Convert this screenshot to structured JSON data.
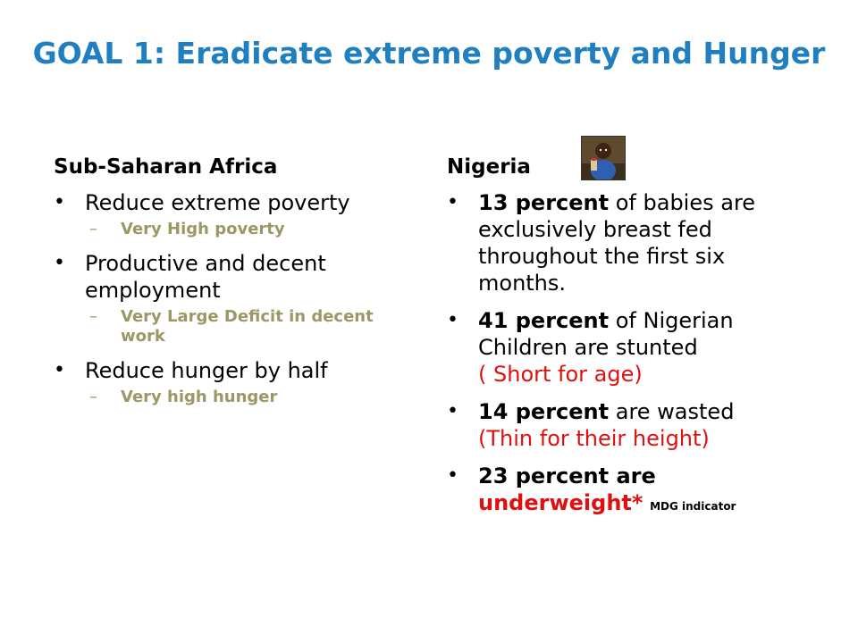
{
  "title": "GOAL 1: Eradicate extreme poverty and Hunger",
  "left": {
    "heading": "Sub-Saharan Africa",
    "items": [
      {
        "text": "Reduce extreme poverty",
        "sub": "Very High poverty"
      },
      {
        "text": "Productive and decent employment",
        "sub": "Very Large Deficit in decent work"
      },
      {
        "text": "Reduce hunger by half",
        "sub": "Very high hunger"
      }
    ]
  },
  "right": {
    "heading": "Nigeria",
    "items": [
      {
        "bold": "13 percent",
        "rest": " of babies are exclusively breast fed throughout the first six months."
      },
      {
        "bold": "41 percent",
        "rest": " of Nigerian Children are stunted",
        "red": "( Short for age)"
      },
      {
        "bold": "14 percent",
        "rest": " are wasted",
        "red": "(Thin for their height)"
      },
      {
        "bold": "23 percent are",
        "red_bold": "underweight*",
        "note": "MDG indicator"
      }
    ]
  },
  "colors": {
    "title": "#1f7fc1",
    "sub_bullet": "#9c9866",
    "red": "#e01010"
  },
  "icons": {
    "bullet": "•",
    "dash": "–"
  }
}
